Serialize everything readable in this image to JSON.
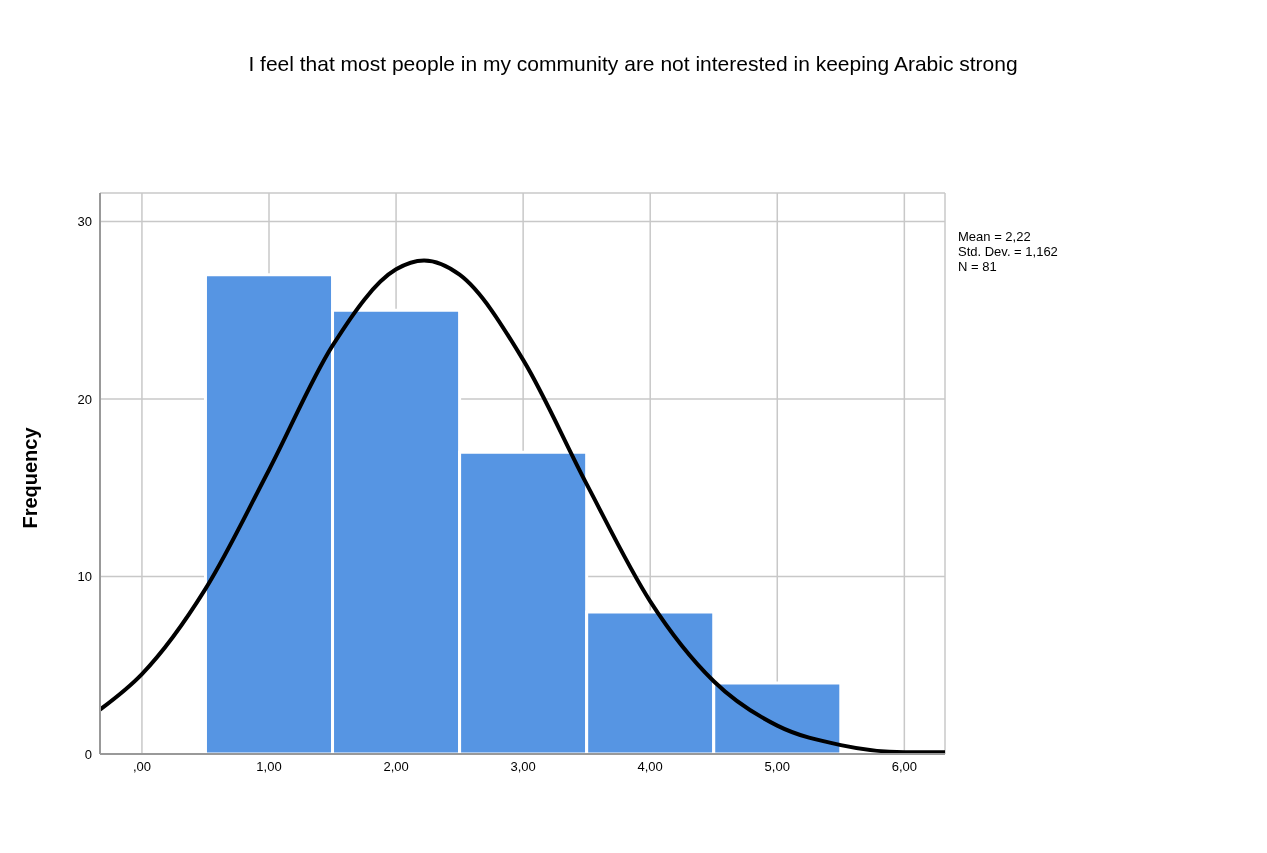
{
  "chart_data": {
    "type": "histogram",
    "title": "I feel that most people in my community are not interested in keeping Arabic strong",
    "ylabel": "Frequency",
    "annotations": [
      "Mean = 2,22",
      "Std. Dev. = 1,162",
      "N = 81"
    ],
    "bins": [
      0.5,
      1.5,
      2.5,
      3.5,
      4.5,
      5.5
    ],
    "series": [
      {
        "color": "#5695e3",
        "values": [
          27,
          25,
          17,
          8,
          4
        ]
      },
      {
        "type": "line",
        "color": "#000000",
        "x": [
          -0.33,
          0,
          0.5,
          1,
          1.5,
          2,
          2.22,
          2.5,
          3,
          3.5,
          4,
          4.5,
          5,
          5.5,
          6,
          6.32
        ],
        "values": [
          2.5,
          4.5,
          9.3,
          16.0,
          23.0,
          27.3,
          27.8,
          27.0,
          22.2,
          15.2,
          8.6,
          4.1,
          1.6,
          0.5,
          0.1,
          0.1
        ]
      }
    ],
    "xlim": [
      -0.33,
      6.32
    ],
    "xticks": [
      {
        "value": 0,
        "label": ",00"
      },
      {
        "value": 1,
        "label": "1,00"
      },
      {
        "value": 2,
        "label": "2,00"
      },
      {
        "value": 3,
        "label": "3,00"
      },
      {
        "value": 4,
        "label": "4,00"
      },
      {
        "value": 5,
        "label": "5,00"
      },
      {
        "value": 6,
        "label": "6,00"
      }
    ],
    "ylim": [
      0,
      31.6
    ],
    "yticks": [
      0,
      10,
      20,
      30
    ],
    "grid": true,
    "marker": "none",
    "line_style": "solid"
  }
}
